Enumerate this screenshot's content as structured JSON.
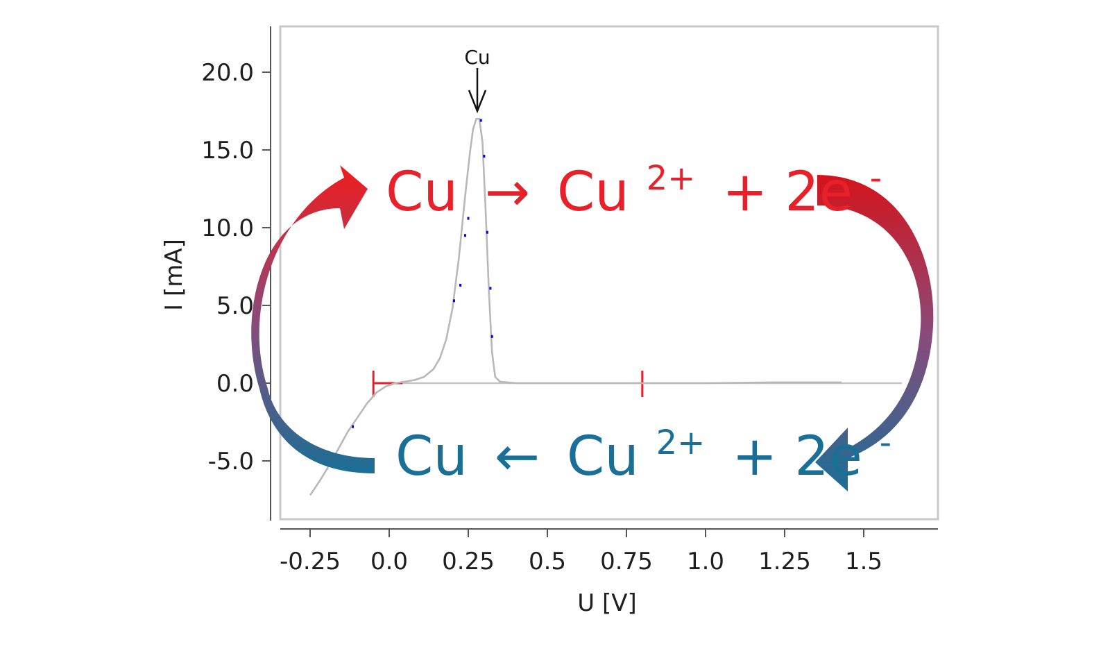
{
  "chart_data": {
    "type": "line",
    "xlabel": "U [V]",
    "ylabel": "I [mA]",
    "xlim": [
      -0.35,
      1.75
    ],
    "ylim": [
      -8.5,
      23.0
    ],
    "x_ticks": [
      "-0.25",
      "0.0",
      "0.25",
      "0.5",
      "0.75",
      "1.0",
      "1.25",
      "1.5"
    ],
    "x_tick_values": [
      -0.25,
      0.0,
      0.25,
      0.5,
      0.75,
      1.0,
      1.25,
      1.5
    ],
    "y_ticks": [
      "20.0",
      "15.0",
      "10.0",
      "5.0",
      "0.0",
      "-5.0"
    ],
    "y_tick_values": [
      20.0,
      15.0,
      10.0,
      5.0,
      0.0,
      -5.0
    ],
    "grid": false,
    "series": [
      {
        "color": "#b8b8b8",
        "x": [
          -0.25,
          -0.22,
          -0.19,
          -0.16,
          -0.13,
          -0.1,
          -0.07,
          -0.04,
          -0.01,
          0.02,
          0.05,
          0.08,
          0.11,
          0.14,
          0.16,
          0.18,
          0.2,
          0.22,
          0.24,
          0.255,
          0.265,
          0.275,
          0.285,
          0.295,
          0.305,
          0.315,
          0.325,
          0.335,
          0.35,
          0.4,
          0.6,
          0.8,
          1.0,
          1.2,
          1.43
        ],
        "y": [
          -7.2,
          -6.3,
          -5.3,
          -4.2,
          -3.1,
          -2.2,
          -1.3,
          -0.6,
          -0.2,
          0.0,
          0.1,
          0.2,
          0.4,
          0.9,
          1.6,
          2.8,
          4.8,
          8.0,
          12.0,
          14.8,
          16.3,
          17.0,
          17.0,
          15.5,
          11.0,
          6.0,
          2.0,
          0.4,
          0.1,
          0.0,
          0.0,
          0.0,
          0.0,
          0.05,
          0.05
        ]
      },
      {
        "color": "#0000ff",
        "marker": "point",
        "x": [
          -0.115,
          0.205,
          0.225,
          0.24,
          0.25,
          0.29,
          0.3,
          0.31,
          0.32,
          0.325
        ],
        "y": [
          -2.8,
          5.3,
          6.3,
          9.5,
          10.6,
          16.9,
          14.6,
          9.7,
          6.1,
          3.0
        ]
      }
    ],
    "markers": [
      {
        "x": -0.05,
        "color": "#e8202a",
        "style": "bracket"
      },
      {
        "x": 0.8,
        "color": "#e8202a",
        "style": "tick"
      }
    ],
    "annotations": [
      {
        "text": "Cu",
        "x": 0.28,
        "y": 17.0,
        "arrow": true
      }
    ]
  },
  "equations": {
    "oxidation": {
      "lhs": "Cu",
      "arrow": "→",
      "rhs": "Cu",
      "charge": "2+",
      "rest": "+ 2e",
      "electron": "-",
      "color": "#e8202a"
    },
    "reduction": {
      "lhs": "Cu",
      "arrow": "←",
      "rhs": "Cu",
      "charge": "2+",
      "rest": "+ 2e",
      "electron": "-",
      "color": "#1a6f96"
    }
  },
  "colors": {
    "curve": "#b8b8b8",
    "points": "#0000ff",
    "oxidation": "#e8202a",
    "reduction": "#1a6f96",
    "frame": "#c8c8c8"
  }
}
